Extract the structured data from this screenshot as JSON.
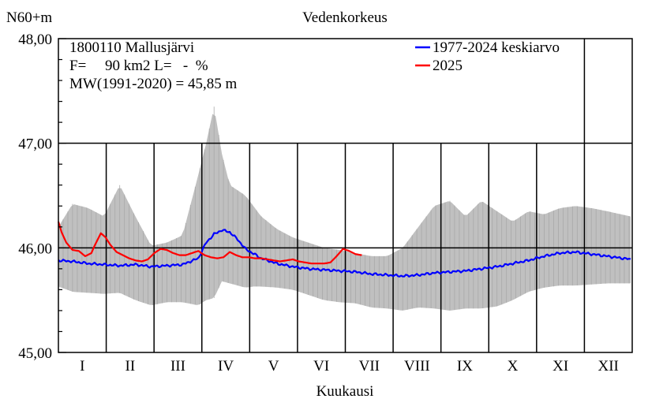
{
  "chart_data": {
    "type": "line",
    "title": "Vedenkorkeus",
    "ylabel": "N60+m",
    "xlabel": "Kuukausi",
    "ylim": [
      45.0,
      48.0
    ],
    "yticks": [
      "45,00",
      "46,00",
      "47,00",
      "48,00"
    ],
    "months": [
      "I",
      "II",
      "III",
      "IV",
      "V",
      "VI",
      "VII",
      "VIII",
      "IX",
      "X",
      "XI",
      "XII"
    ],
    "station": {
      "line1": "1800110 Mallusjärvi",
      "line2": "F=     90 km2 L=   -  %",
      "line3": "MW(1991-2020) = 45,85 m"
    },
    "colors": {
      "mean": "#0000ff",
      "current": "#ff0000",
      "band": "#c0c0c0"
    },
    "legend": {
      "placement": "top-right"
    },
    "band": {
      "name": "",
      "day": [
        1,
        10,
        20,
        30,
        40,
        50,
        60,
        70,
        80,
        90,
        95,
        100,
        105,
        110,
        115,
        120,
        125,
        130,
        140,
        150,
        160,
        170,
        180,
        190,
        200,
        210,
        220,
        230,
        240,
        250,
        260,
        270,
        280,
        290,
        300,
        310,
        320,
        330,
        340,
        350,
        365
      ],
      "max": [
        46.2,
        46.42,
        46.38,
        46.3,
        46.6,
        46.3,
        46.02,
        46.05,
        46.12,
        46.7,
        47.0,
        47.35,
        46.9,
        46.6,
        46.55,
        46.5,
        46.4,
        46.3,
        46.18,
        46.1,
        46.05,
        46.0,
        45.98,
        45.95,
        45.92,
        45.92,
        46.0,
        46.2,
        46.4,
        46.45,
        46.3,
        46.45,
        46.35,
        46.25,
        46.35,
        46.32,
        46.38,
        46.4,
        46.38,
        46.35,
        46.3
      ],
      "min": [
        45.63,
        45.58,
        45.57,
        45.56,
        45.57,
        45.5,
        45.45,
        45.48,
        45.48,
        45.45,
        45.5,
        45.52,
        45.68,
        45.66,
        45.64,
        45.62,
        45.63,
        45.63,
        45.62,
        45.6,
        45.55,
        45.5,
        45.48,
        45.47,
        45.43,
        45.42,
        45.4,
        45.43,
        45.42,
        45.4,
        45.42,
        45.42,
        45.44,
        45.5,
        45.58,
        45.62,
        45.64,
        45.64,
        45.65,
        45.66,
        45.66
      ]
    },
    "series": [
      {
        "name": "1977-2024 keskiarvo",
        "day": [
          1,
          10,
          20,
          30,
          40,
          50,
          60,
          70,
          80,
          90,
          95,
          100,
          105,
          110,
          115,
          120,
          130,
          140,
          150,
          160,
          170,
          180,
          190,
          200,
          210,
          220,
          230,
          240,
          250,
          260,
          270,
          280,
          290,
          300,
          310,
          320,
          330,
          340,
          350,
          365
        ],
        "values": [
          45.88,
          45.87,
          45.85,
          45.84,
          45.83,
          45.84,
          45.82,
          45.83,
          45.84,
          45.9,
          46.05,
          46.13,
          46.17,
          46.15,
          46.08,
          45.99,
          45.9,
          45.85,
          45.82,
          45.8,
          45.79,
          45.78,
          45.77,
          45.75,
          45.74,
          45.73,
          45.74,
          45.76,
          45.77,
          45.78,
          45.8,
          45.82,
          45.85,
          45.88,
          45.92,
          45.95,
          45.96,
          45.94,
          45.92,
          45.89
        ]
      },
      {
        "name": "2025",
        "day": [
          1,
          3,
          6,
          10,
          14,
          18,
          22,
          24,
          28,
          31,
          34,
          38,
          42,
          46,
          50,
          54,
          58,
          62,
          66,
          70,
          74,
          78,
          82,
          86,
          90,
          94,
          98,
          102,
          106,
          110,
          114,
          118,
          122,
          126,
          130,
          134,
          138,
          142,
          146,
          150,
          154,
          158,
          162,
          166,
          170,
          174,
          178,
          182,
          186,
          190,
          194
        ],
        "values": [
          46.25,
          46.15,
          46.05,
          45.98,
          45.97,
          45.92,
          45.95,
          46.02,
          46.14,
          46.1,
          46.03,
          45.96,
          45.93,
          45.9,
          45.88,
          45.87,
          45.89,
          45.95,
          45.99,
          45.98,
          45.95,
          45.93,
          45.93,
          45.95,
          45.97,
          45.93,
          45.91,
          45.9,
          45.91,
          45.96,
          45.93,
          45.91,
          45.91,
          45.9,
          45.9,
          45.89,
          45.88,
          45.87,
          45.88,
          45.89,
          45.87,
          45.86,
          45.85,
          45.85,
          45.85,
          45.86,
          45.92,
          45.99,
          45.97,
          45.94,
          45.93
        ]
      }
    ]
  }
}
